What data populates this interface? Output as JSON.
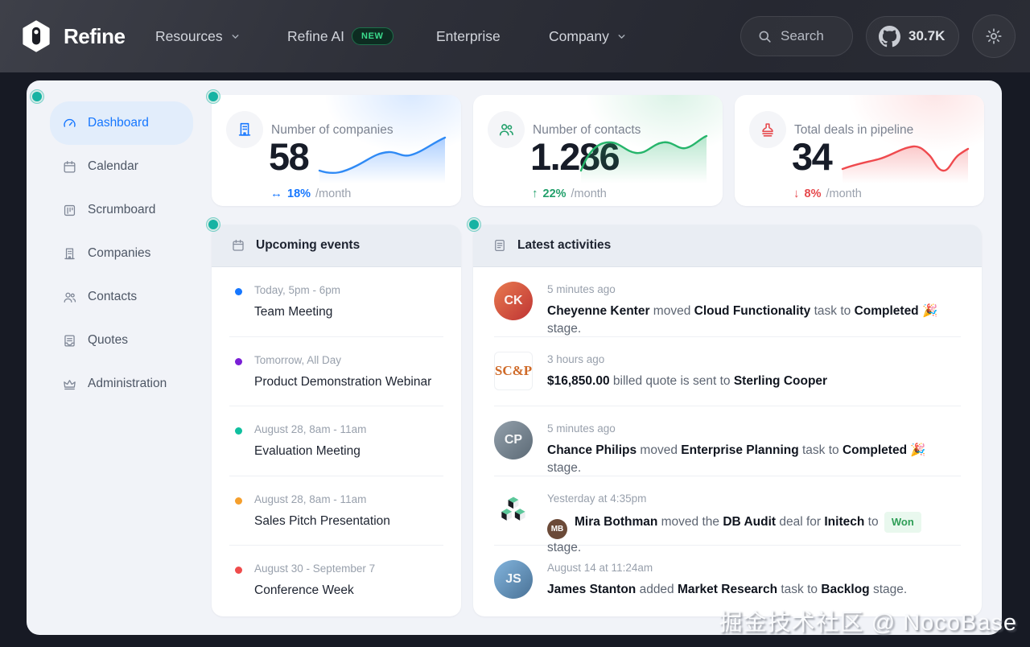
{
  "navbar": {
    "brand": "Refine",
    "items": [
      {
        "label": "Resources",
        "has_chevron": true
      },
      {
        "label": "Refine AI",
        "badge": "NEW"
      },
      {
        "label": "Enterprise"
      },
      {
        "label": "Company",
        "has_chevron": true
      }
    ],
    "search_label": "Search",
    "github_stars": "30.7K"
  },
  "sidebar": {
    "items": [
      {
        "label": "Dashboard",
        "icon": "dashboard-gauge-icon",
        "active": true
      },
      {
        "label": "Calendar",
        "icon": "calendar-icon"
      },
      {
        "label": "Scrumboard",
        "icon": "board-icon"
      },
      {
        "label": "Companies",
        "icon": "building-icon"
      },
      {
        "label": "Contacts",
        "icon": "team-icon"
      },
      {
        "label": "Quotes",
        "icon": "container-icon"
      },
      {
        "label": "Administration",
        "icon": "crown-icon"
      }
    ]
  },
  "stats": {
    "cards": [
      {
        "title": "Number of companies",
        "value": "58",
        "change_icon": "↔",
        "change": "18%",
        "suffix": "/month",
        "accent": "#1677ff",
        "trend": "up"
      },
      {
        "title": "Number of contacts",
        "value": "1.286",
        "change_icon": "↑",
        "change": "22%",
        "suffix": "/month",
        "accent": "#22a06b",
        "trend": "up"
      },
      {
        "title": "Total deals in pipeline",
        "value": "34",
        "change_icon": "↓",
        "change": "8%",
        "suffix": "/month",
        "accent": "#e6484c",
        "trend": "down"
      }
    ]
  },
  "events": {
    "title": "Upcoming events",
    "items": [
      {
        "color": "#1677ff",
        "date": "Today, 5pm - 6pm",
        "title": "Team Meeting"
      },
      {
        "color": "#7a1fd6",
        "date": "Tomorrow, All Day",
        "title": "Product Demonstration Webinar"
      },
      {
        "color": "#0fbf9f",
        "date": "August 28, 8am - 11am",
        "title": "Evaluation Meeting"
      },
      {
        "color": "#f59f2c",
        "date": "August 28, 8am - 11am",
        "title": "Sales Pitch Presentation"
      },
      {
        "color": "#ef4b4b",
        "date": "August 30 - September 7",
        "title": "Conference Week"
      }
    ]
  },
  "activities": {
    "title": "Latest activities",
    "items": [
      {
        "time": "5 minutes ago",
        "avatar": {
          "type": "photo",
          "initials": "CK"
        },
        "segments": [
          {
            "text": "Cheyenne Kenter",
            "bold": true
          },
          {
            "text": " moved "
          },
          {
            "text": "Cloud Functionality",
            "bold": true
          },
          {
            "text": " task to "
          },
          {
            "text": "Completed",
            "bold": true
          },
          {
            "text": " 🎉 stage."
          }
        ]
      },
      {
        "time": "3 hours ago",
        "avatar": {
          "type": "logo-scp",
          "label": "SC&P"
        },
        "segments": [
          {
            "text": "$16,850.00",
            "bold": true
          },
          {
            "text": " billed quote is sent to "
          },
          {
            "text": "Sterling Cooper",
            "bold": true
          }
        ]
      },
      {
        "time": "5 minutes ago",
        "avatar": {
          "type": "photo",
          "initials": "CP"
        },
        "segments": [
          {
            "text": "Chance Philips",
            "bold": true
          },
          {
            "text": " moved "
          },
          {
            "text": "Enterprise Planning",
            "bold": true
          },
          {
            "text": " task to "
          },
          {
            "text": "Completed",
            "bold": true
          },
          {
            "text": " 🎉 stage."
          }
        ]
      },
      {
        "time": "Yesterday at 4:35pm",
        "avatar": {
          "type": "logo-initech"
        },
        "mini_avatar": {
          "initials": "MB"
        },
        "segments": [
          {
            "text": "Mira Bothman",
            "bold": true
          },
          {
            "text": " moved the "
          },
          {
            "text": "DB Audit",
            "bold": true
          },
          {
            "text": " deal for "
          },
          {
            "text": "Initech",
            "bold": true
          },
          {
            "text": " to "
          },
          {
            "text": "Won",
            "badge": true
          },
          {
            "text": " stage."
          }
        ]
      },
      {
        "time": "August 14 at 11:24am",
        "avatar": {
          "type": "photo",
          "initials": "JS"
        },
        "segments": [
          {
            "text": "James Stanton",
            "bold": true
          },
          {
            "text": " added "
          },
          {
            "text": "Market Research",
            "bold": true
          },
          {
            "text": " task to "
          },
          {
            "text": "Backlog",
            "bold": true
          },
          {
            "text": " stage."
          }
        ]
      }
    ]
  },
  "annotation_markers": {
    "count": 4,
    "color": "#17b3a3"
  },
  "watermark": "掘金技术社区 @ NocoBase"
}
